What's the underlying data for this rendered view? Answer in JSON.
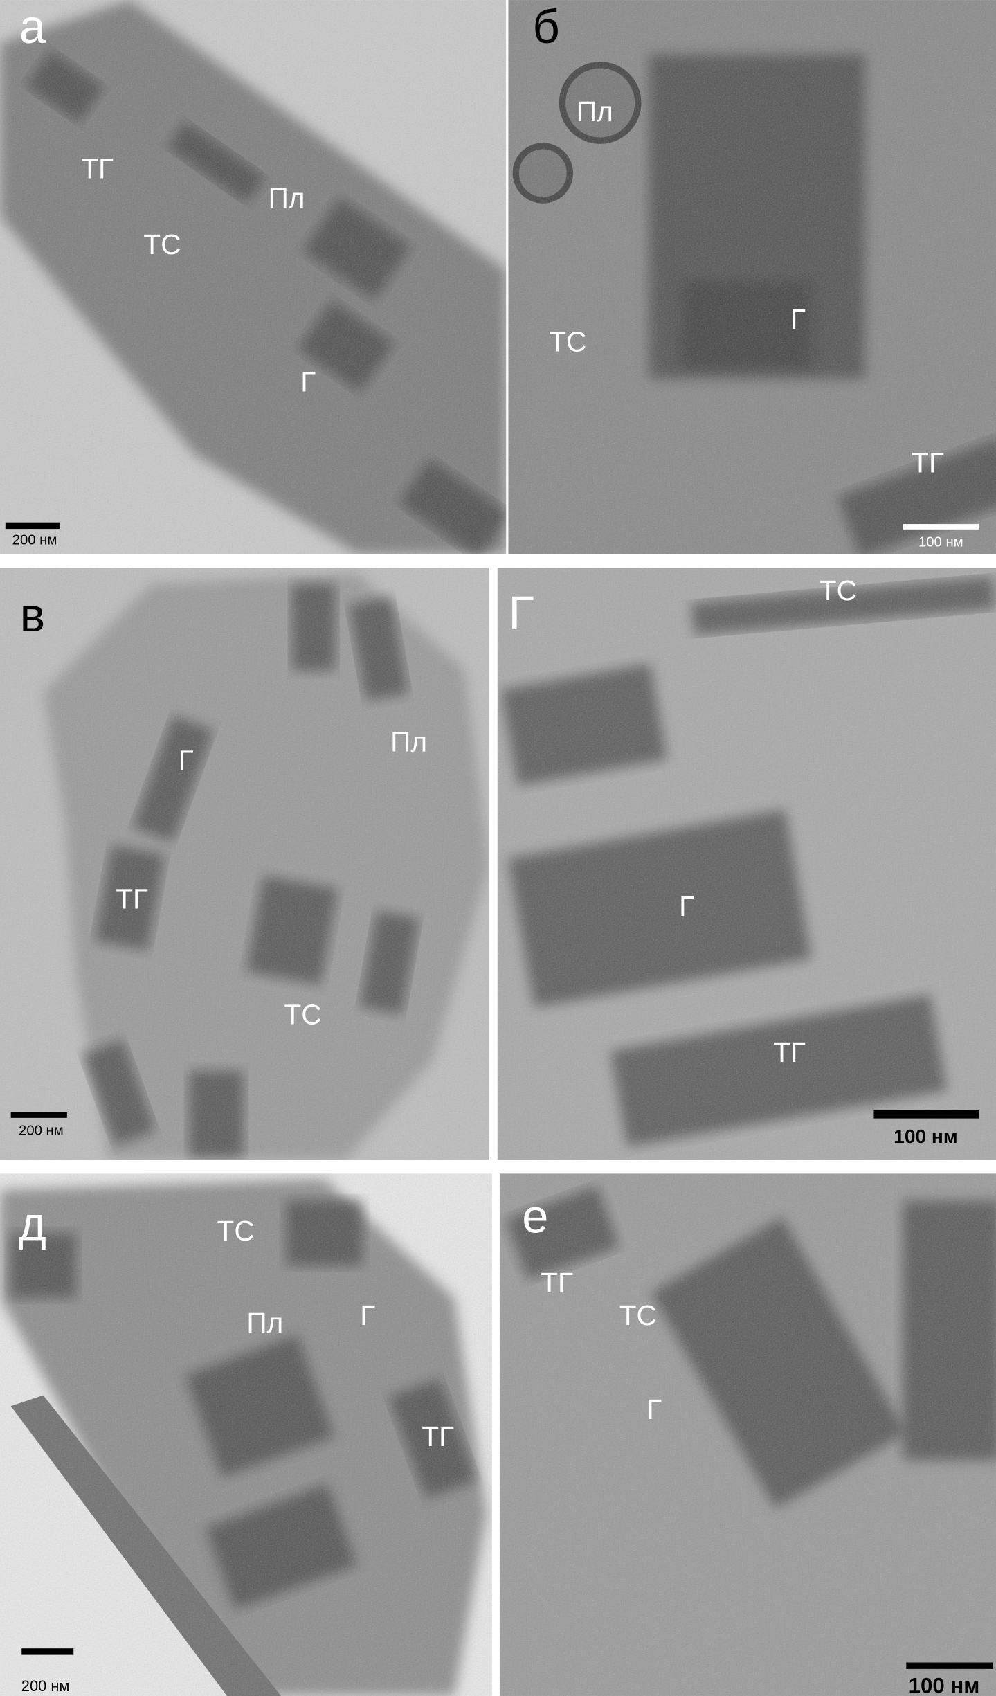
{
  "panels": [
    {
      "letter": "а",
      "labels": [
        "ТГ",
        "ТС",
        "Пл",
        "Г"
      ],
      "scale_bar": "200 нм"
    },
    {
      "letter": "б",
      "labels": [
        "Пл",
        "ТС",
        "Г",
        "ТГ"
      ],
      "scale_bar": "100 нм"
    },
    {
      "letter": "в",
      "labels": [
        "Г",
        "Пл",
        "ТГ",
        "ТС"
      ],
      "scale_bar": "200 нм"
    },
    {
      "letter": "Г",
      "labels": [
        "ТС",
        "Г",
        "ТГ"
      ],
      "scale_bar": "100 нм"
    },
    {
      "letter": "д",
      "labels": [
        "ТС",
        "Пл",
        "Г",
        "ТГ"
      ],
      "scale_bar": "200 нм"
    },
    {
      "letter": "е",
      "labels": [
        "ТГ",
        "ТС",
        "Г"
      ],
      "scale_bar": "100 нм"
    }
  ]
}
